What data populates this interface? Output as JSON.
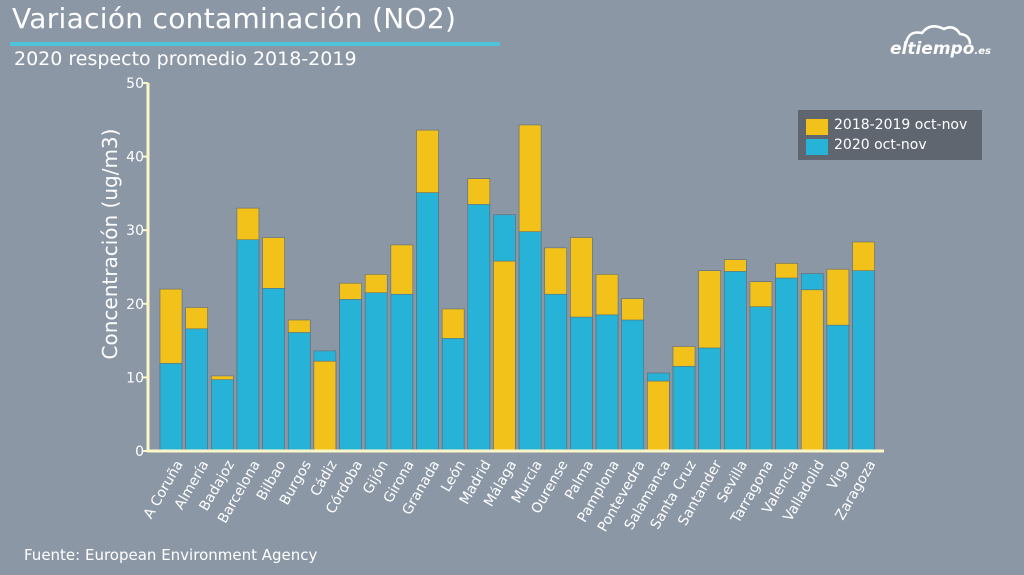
{
  "header": {
    "title": "Variación contaminación (NO2)",
    "subtitle": "2020 respecto promedio 2018-2019"
  },
  "footer": {
    "source": "Fuente: European Environment Agency"
  },
  "logo": {
    "text": "eltiempo",
    "suffix": ".es"
  },
  "colors": {
    "background": "#8c97a6",
    "series_2018_2019": "#f2c21b",
    "series_2020": "#27b3d8",
    "axis": "#fbf7c8",
    "title_underline": "#4fc3d9"
  },
  "chart_data": {
    "type": "bar",
    "ylabel": "Concentración (ug/m3)",
    "xlabel": "",
    "ylim": [
      0,
      50
    ],
    "yticks": [
      0,
      10,
      20,
      30,
      40,
      50
    ],
    "grid": false,
    "legend_position": "top-right",
    "categories": [
      "A Coruña",
      "Almería",
      "Badajoz",
      "Barcelona",
      "Bilbao",
      "Burgos",
      "Cádiz",
      "Córdoba",
      "Gijón",
      "Girona",
      "Granada",
      "León",
      "Madrid",
      "Málaga",
      "Murcia",
      "Ourense",
      "Palma",
      "Pamplona",
      "Pontevedra",
      "Salamanca",
      "Santa Cruz",
      "Santander",
      "Sevilla",
      "Tarragona",
      "Valencia",
      "Valladolid",
      "Vigo",
      "Zaragoza"
    ],
    "series": [
      {
        "name": "2018-2019 oct-nov",
        "color": "#f2c21b",
        "values": [
          22.0,
          19.5,
          10.2,
          33.0,
          29.0,
          17.8,
          12.2,
          22.8,
          24.0,
          28.0,
          43.6,
          19.3,
          37.0,
          25.8,
          44.3,
          27.6,
          29.0,
          24.0,
          20.7,
          9.5,
          14.2,
          24.5,
          26.0,
          23.0,
          25.5,
          21.9,
          24.7,
          28.4
        ]
      },
      {
        "name": "2020 oct-nov",
        "color": "#27b3d8",
        "values": [
          11.9,
          16.6,
          9.7,
          28.7,
          22.1,
          16.1,
          13.6,
          20.6,
          21.5,
          21.3,
          35.1,
          15.3,
          33.5,
          32.1,
          29.8,
          21.3,
          18.2,
          18.5,
          17.8,
          10.6,
          11.5,
          14.0,
          24.4,
          19.6,
          23.5,
          24.1,
          17.1,
          24.5
        ]
      }
    ]
  }
}
